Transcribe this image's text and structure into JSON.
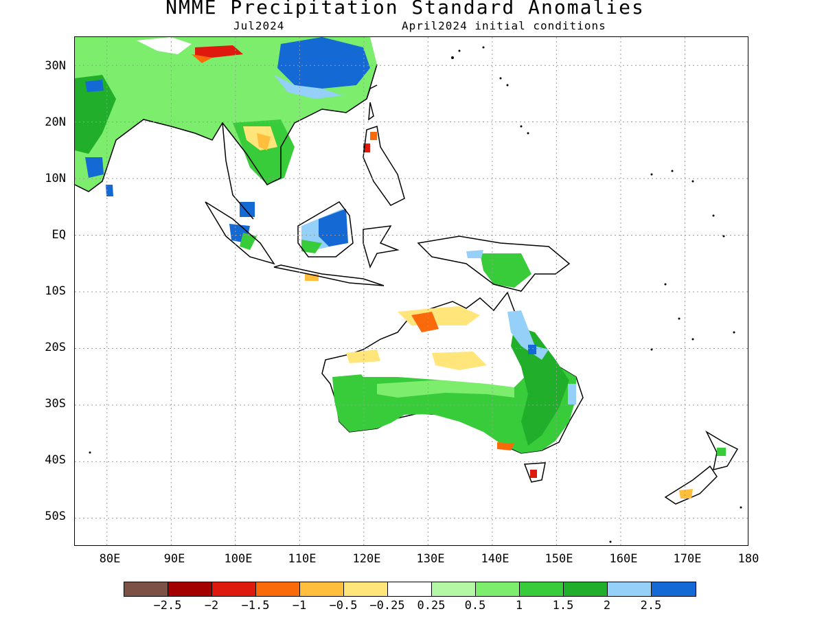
{
  "map": {
    "title": "NMME Precipitation Standard Anomalies",
    "target_month": "Jul2024",
    "initial_conditions": "April2024 initial conditions",
    "lat_labels": [
      "30N",
      "20N",
      "10N",
      "EQ",
      "10S",
      "20S",
      "30S",
      "40S",
      "50S"
    ],
    "lon_labels": [
      "80E",
      "90E",
      "100E",
      "110E",
      "120E",
      "130E",
      "140E",
      "150E",
      "160E",
      "170E",
      "180"
    ],
    "extent": {
      "lon_min": 75,
      "lon_max": 180,
      "lat_min": -55,
      "lat_max": 35
    }
  },
  "colorbar": {
    "colors": [
      "#7b5245",
      "#a30000",
      "#dd1a0d",
      "#fb6a0a",
      "#ffbe3c",
      "#ffe57a",
      "#ffffff",
      "#b4f7a4",
      "#7ded6e",
      "#39cc3a",
      "#21ae2a",
      "#95d0f9",
      "#1569d4"
    ],
    "labels": [
      "−2.5",
      "−2",
      "−1.5",
      "−1",
      "−0.5",
      "−0.25",
      "0.25",
      "0.5",
      "1",
      "1.5",
      "2",
      "2.5"
    ]
  }
}
